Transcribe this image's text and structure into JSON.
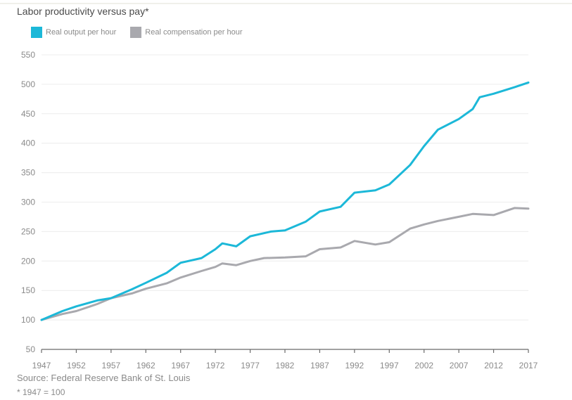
{
  "chart_data": {
    "type": "line",
    "title": "Labor productivity versus pay*",
    "xlabel": "",
    "ylabel": "",
    "ylim": [
      50,
      550
    ],
    "xlim": [
      1947,
      2017
    ],
    "y_ticks": [
      50,
      100,
      150,
      200,
      250,
      300,
      350,
      400,
      450,
      500,
      550
    ],
    "x_ticks": [
      1947,
      1952,
      1957,
      1962,
      1967,
      1972,
      1977,
      1982,
      1987,
      1992,
      1997,
      2002,
      2007,
      2012,
      2017
    ],
    "grid": true,
    "legend_position": "top-left",
    "series": [
      {
        "name": "Real output per hour",
        "color": "#1cb8d8",
        "x": [
          1947,
          1950,
          1952,
          1955,
          1957,
          1960,
          1962,
          1965,
          1967,
          1970,
          1972,
          1973,
          1975,
          1977,
          1980,
          1982,
          1985,
          1987,
          1990,
          1992,
          1995,
          1997,
          2000,
          2002,
          2004,
          2007,
          2009,
          2010,
          2012,
          2015,
          2017
        ],
        "values": [
          100,
          115,
          123,
          133,
          137,
          152,
          163,
          180,
          197,
          205,
          220,
          230,
          225,
          242,
          250,
          252,
          267,
          284,
          292,
          316,
          320,
          330,
          363,
          395,
          423,
          441,
          458,
          478,
          484,
          495,
          503
        ]
      },
      {
        "name": "Real compensation per hour",
        "color": "#a9a9ae",
        "x": [
          1947,
          1950,
          1952,
          1955,
          1957,
          1960,
          1962,
          1965,
          1967,
          1970,
          1972,
          1973,
          1975,
          1977,
          1979,
          1982,
          1985,
          1987,
          1990,
          1992,
          1995,
          1997,
          2000,
          2002,
          2004,
          2007,
          2009,
          2012,
          2015,
          2017
        ],
        "values": [
          100,
          110,
          115,
          127,
          137,
          145,
          153,
          162,
          172,
          183,
          190,
          196,
          193,
          200,
          205,
          206,
          208,
          220,
          223,
          234,
          228,
          232,
          255,
          262,
          268,
          275,
          280,
          278,
          290,
          289
        ]
      }
    ],
    "annotations": {
      "source": "Source: Federal Reserve Bank of St. Louis",
      "footnote": "* 1947 = 100"
    }
  }
}
